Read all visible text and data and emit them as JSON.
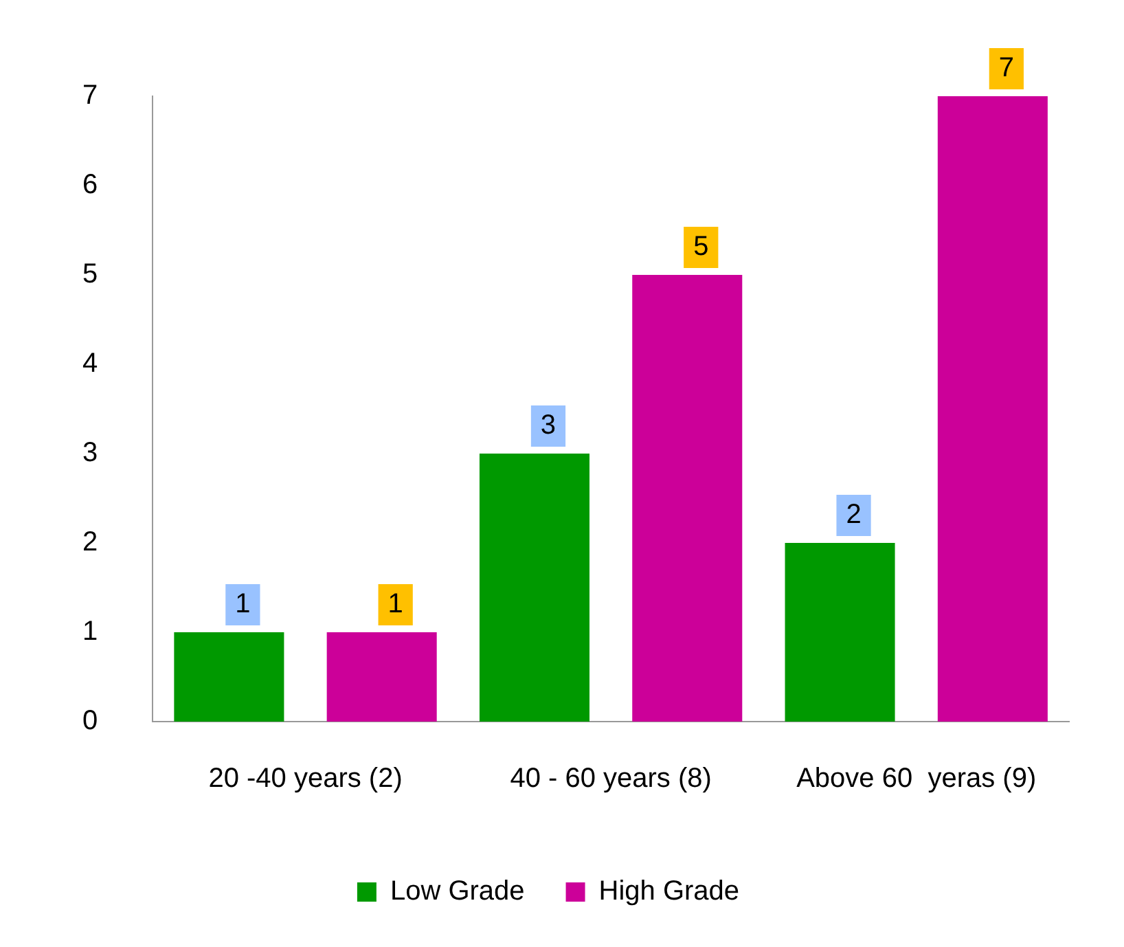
{
  "chart_data": {
    "type": "bar",
    "categories": [
      "20 -40 years (2)",
      "40 - 60 years (8)",
      "Above 60  yeras (9)"
    ],
    "series": [
      {
        "name": "Low Grade",
        "color": "#009900",
        "values": [
          1,
          3,
          2
        ]
      },
      {
        "name": "High Grade",
        "color": "#cc0099",
        "values": [
          1,
          5,
          7
        ]
      }
    ],
    "ylim": [
      0,
      7
    ],
    "yticks": [
      0,
      1,
      2,
      3,
      4,
      5,
      6,
      7
    ],
    "grid": false,
    "legend": "bottom",
    "data_labels": true
  }
}
